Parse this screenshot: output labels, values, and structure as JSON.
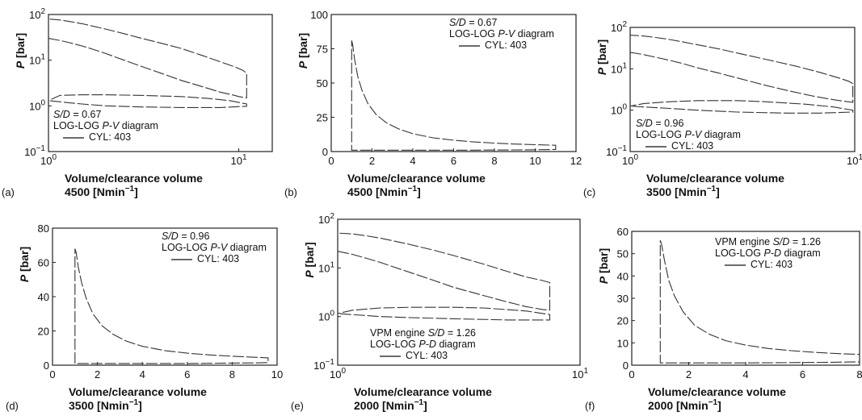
{
  "chart_data": [
    {
      "panel": "(a)",
      "type": "line",
      "xscale": "log",
      "yscale": "log",
      "xlim": [
        1,
        15
      ],
      "ylim": [
        0.1,
        100
      ],
      "xticks": [
        "10^0",
        "10^1"
      ],
      "yticks": [
        "10^-1",
        "10^0",
        "10^1",
        "10^2"
      ],
      "xlabel": "Volume/clearance volume",
      "ylabel": "P [bar]",
      "speed": "4500 [Nmin⁻¹]",
      "legend": [
        "S/D = 0.67",
        "LOG-LOG P-V diagram",
        "CYL: 403"
      ],
      "series": [
        {
          "x": [
            1.0,
            1.15,
            1.3,
            1.5,
            1.7,
            2.0,
            2.5,
            3.0,
            4.0,
            5.0,
            6.5,
            8.0,
            9.5,
            10.0,
            11.0,
            11.0,
            10.5,
            9.5,
            8.0,
            6.5,
            5.0,
            4.0,
            3.0,
            2.5,
            2.0,
            1.7,
            1.5,
            1.3,
            1.15,
            1.0,
            1.0,
            1.5,
            2.0,
            3.0,
            5.0,
            8.0,
            11.0,
            11.0,
            9.0,
            7.0,
            5.0,
            3.0,
            2.0,
            1.5,
            1.15,
            1.0
          ],
          "y": [
            30.0,
            27.0,
            24.0,
            20.5,
            17.5,
            14.0,
            10.0,
            7.6,
            5.0,
            3.6,
            2.6,
            2.0,
            1.7,
            1.6,
            1.5,
            5.2,
            6.0,
            7.2,
            9.2,
            12.5,
            18.0,
            23.0,
            31.0,
            38.0,
            48.0,
            56.0,
            63.0,
            70.0,
            76.0,
            80.0,
            1.3,
            1.1,
            1.0,
            0.95,
            0.92,
            0.92,
            0.98,
            1.1,
            1.3,
            1.45,
            1.6,
            1.7,
            1.75,
            1.75,
            1.7,
            1.3
          ]
        }
      ]
    },
    {
      "panel": "(b)",
      "type": "line",
      "xscale": "linear",
      "yscale": "linear",
      "xlim": [
        0,
        12
      ],
      "ylim": [
        0,
        100
      ],
      "xticks": [
        "0",
        "2",
        "4",
        "6",
        "8",
        "10",
        "12"
      ],
      "yticks": [
        "0",
        "25",
        "50",
        "75",
        "100"
      ],
      "xlabel": "Volume/clearance volume",
      "ylabel": "P [bar]",
      "speed": "4500 [Nmin⁻¹]",
      "legend": [
        "S/D = 0.67",
        "LOG-LOG P-V diagram",
        "CYL: 403"
      ],
      "series": [
        {
          "x": [
            1.0,
            1.05,
            1.15,
            1.3,
            1.5,
            1.8,
            2.2,
            2.7,
            3.3,
            4.0,
            5.0,
            6.0,
            7.0,
            8.0,
            9.0,
            10.0,
            11.0,
            11.0,
            10.0,
            9.0,
            8.0,
            7.0,
            6.0,
            5.0,
            4.0,
            3.0,
            2.0,
            1.5,
            1.2,
            1.05,
            1.0,
            1.0
          ],
          "y": [
            81.0,
            78.0,
            67.0,
            55.0,
            45.0,
            35.0,
            27.0,
            21.0,
            16.5,
            13.0,
            10.0,
            8.3,
            7.0,
            6.2,
            5.5,
            5.0,
            4.6,
            1.5,
            1.3,
            1.2,
            1.1,
            1.0,
            1.0,
            1.0,
            1.0,
            1.0,
            1.0,
            1.0,
            1.0,
            1.0,
            1.0,
            81.0
          ]
        }
      ]
    },
    {
      "panel": "(c)",
      "type": "line",
      "xscale": "log",
      "yscale": "log",
      "xlim": [
        1,
        10
      ],
      "ylim": [
        0.1,
        100
      ],
      "xticks": [
        "10^0",
        "10^1"
      ],
      "yticks": [
        "10^-1",
        "10^0",
        "10^1",
        "10^2"
      ],
      "xlabel": "Volume/clearance volume",
      "ylabel": "P [bar]",
      "speed": "3500 [Nmin⁻¹]",
      "legend": [
        "S/D = 0.96",
        "LOG-LOG P-V diagram",
        "CYL: 403"
      ],
      "series": [
        {
          "x": [
            1.0,
            1.15,
            1.3,
            1.5,
            1.7,
            2.0,
            2.5,
            3.0,
            4.0,
            5.0,
            6.5,
            8.0,
            9.3,
            9.8,
            9.8,
            9.4,
            8.5,
            7.0,
            5.5,
            4.0,
            3.0,
            2.5,
            2.0,
            1.7,
            1.5,
            1.3,
            1.15,
            1.0,
            1.0,
            1.5,
            2.0,
            3.0,
            5.0,
            7.0,
            9.8,
            9.8,
            8.0,
            6.0,
            4.0,
            3.0,
            2.0,
            1.5,
            1.15,
            1.0
          ],
          "y": [
            25.0,
            22.0,
            19.0,
            16.0,
            13.5,
            10.5,
            7.8,
            6.0,
            4.0,
            3.0,
            2.2,
            1.8,
            1.6,
            1.55,
            4.4,
            5.0,
            6.0,
            8.2,
            11.5,
            17.0,
            24.0,
            30.0,
            38.0,
            45.0,
            51.0,
            57.0,
            62.0,
            65.0,
            1.25,
            1.1,
            1.0,
            0.9,
            0.85,
            0.85,
            0.9,
            1.0,
            1.2,
            1.4,
            1.6,
            1.7,
            1.7,
            1.6,
            1.45,
            1.25
          ]
        }
      ]
    },
    {
      "panel": "(d)",
      "type": "line",
      "xscale": "linear",
      "yscale": "linear",
      "xlim": [
        0,
        10
      ],
      "ylim": [
        0,
        80
      ],
      "xticks": [
        "0",
        "2",
        "4",
        "6",
        "8",
        "10"
      ],
      "yticks": [
        "0",
        "20",
        "40",
        "60",
        "80"
      ],
      "xlabel": "Volume/clearance volume",
      "ylabel": "P [bar]",
      "speed": "3500 [Nmin⁻¹]",
      "legend": [
        "S/D = 0.96",
        "LOG-LOG P-V diagram",
        "CYL: 403"
      ],
      "series": [
        {
          "x": [
            1.0,
            1.05,
            1.15,
            1.3,
            1.5,
            1.8,
            2.2,
            2.7,
            3.3,
            4.0,
            5.0,
            6.0,
            7.0,
            8.0,
            9.0,
            9.6,
            9.6,
            9.0,
            8.0,
            7.0,
            6.0,
            5.0,
            4.0,
            3.0,
            2.0,
            1.5,
            1.2,
            1.05,
            1.0,
            1.0
          ],
          "y": [
            68.0,
            66.0,
            57.0,
            48.0,
            39.0,
            30.0,
            23.0,
            18.0,
            14.0,
            11.0,
            8.5,
            7.0,
            6.0,
            5.2,
            4.6,
            4.3,
            1.5,
            1.3,
            1.2,
            1.1,
            1.0,
            1.0,
            1.0,
            1.0,
            1.0,
            1.0,
            1.0,
            1.0,
            1.0,
            68.0
          ]
        }
      ]
    },
    {
      "panel": "(e)",
      "type": "line",
      "xscale": "log",
      "yscale": "log",
      "xlim": [
        1,
        10
      ],
      "ylim": [
        0.1,
        100
      ],
      "xticks": [
        "10^0",
        "10^1"
      ],
      "yticks": [
        "10^-1",
        "10^0",
        "10^1",
        "10^2"
      ],
      "xlabel": "Volume/clearance volume",
      "ylabel": "P [bar]",
      "speed": "2000 [Nmin⁻¹]",
      "legend": [
        "VPM engine S/D = 1.26",
        "LOG-LOG P-D diagram",
        "CYL: 403"
      ],
      "series": [
        {
          "x": [
            1.0,
            1.15,
            1.3,
            1.5,
            1.7,
            2.0,
            2.5,
            3.0,
            4.0,
            5.0,
            6.0,
            7.0,
            7.5,
            7.5,
            7.0,
            6.0,
            5.0,
            4.0,
            3.0,
            2.5,
            2.0,
            1.7,
            1.5,
            1.3,
            1.15,
            1.0,
            1.0,
            1.5,
            2.0,
            3.0,
            5.0,
            7.5,
            7.5,
            6.0,
            4.0,
            3.0,
            2.0,
            1.5,
            1.15,
            1.0
          ],
          "y": [
            22.0,
            19.0,
            16.0,
            13.0,
            10.5,
            8.0,
            5.5,
            4.0,
            2.7,
            2.0,
            1.6,
            1.4,
            1.35,
            5.0,
            5.5,
            6.5,
            8.5,
            12.0,
            18.0,
            23.0,
            30.0,
            36.0,
            41.0,
            46.0,
            50.0,
            52.0,
            1.15,
            1.0,
            0.95,
            0.9,
            0.85,
            0.85,
            1.1,
            1.3,
            1.5,
            1.55,
            1.55,
            1.5,
            1.35,
            1.15
          ]
        }
      ]
    },
    {
      "panel": "(f)",
      "type": "line",
      "xscale": "linear",
      "yscale": "linear",
      "xlim": [
        0,
        8
      ],
      "ylim": [
        0,
        60
      ],
      "xticks": [
        "0",
        "2",
        "4",
        "6",
        "8"
      ],
      "yticks": [
        "0",
        "10",
        "20",
        "30",
        "40",
        "50",
        "60"
      ],
      "xlabel": "Volume/clearance volume",
      "ylabel": "P [bar]",
      "speed": "2000 [Nmin⁻¹]",
      "legend": [
        "VPM engine S/D = 1.26",
        "LOG-LOG P-D diagram",
        "CYL: 403"
      ],
      "series": [
        {
          "x": [
            1.0,
            1.05,
            1.15,
            1.3,
            1.5,
            1.8,
            2.2,
            2.7,
            3.3,
            4.0,
            4.8,
            5.6,
            6.4,
            7.2,
            8.0,
            8.0,
            7.0,
            6.0,
            5.0,
            4.0,
            3.0,
            2.0,
            1.5,
            1.2,
            1.05,
            1.0,
            1.0
          ],
          "y": [
            56.0,
            54.0,
            47.0,
            38.0,
            31.0,
            24.0,
            18.0,
            14.0,
            11.0,
            9.0,
            7.5,
            6.5,
            5.8,
            5.2,
            4.8,
            1.5,
            1.3,
            1.2,
            1.1,
            1.0,
            1.0,
            1.0,
            1.0,
            1.0,
            1.0,
            1.0,
            56.0
          ]
        }
      ]
    }
  ]
}
